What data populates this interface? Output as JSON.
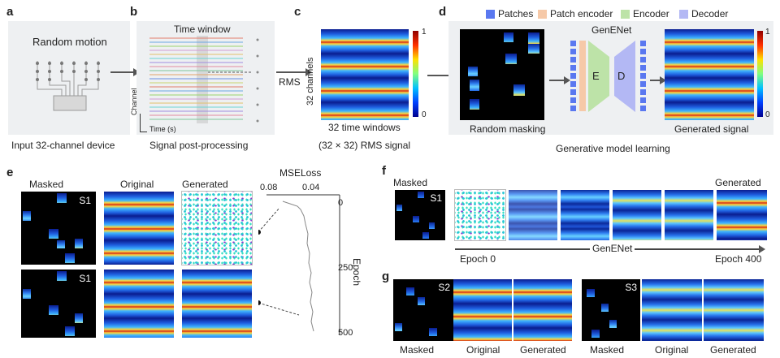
{
  "panels": {
    "a": {
      "letter": "a",
      "title": "Random motion",
      "caption": "Input 32-channel device"
    },
    "b": {
      "letter": "b",
      "title": "Time window",
      "axis_y": "Channel",
      "axis_x": "Time (s)",
      "caption": "Signal post-processing"
    },
    "c": {
      "letter": "c",
      "arrow_label": "RMS",
      "ylabel": "32 channels",
      "xlabel": "32 time windows",
      "caption": "(32 × 32) RMS signal",
      "cbar_max": "1",
      "cbar_min": "0"
    },
    "d": {
      "letter": "d",
      "legend": [
        "Patches",
        "Patch encoder",
        "Encoder",
        "Decoder"
      ],
      "legend_colors": [
        "#5a78f0",
        "#f6c9a8",
        "#bde3a8",
        "#b3b8f4"
      ],
      "model_name": "GenENet",
      "encoder_letter": "E",
      "decoder_letter": "D",
      "mask_caption": "Random masking",
      "gen_caption": "Generated signal",
      "cbar_max": "1",
      "cbar_min": "0",
      "caption": "Generative model learning"
    },
    "e": {
      "letter": "e",
      "headers": [
        "Masked",
        "Original",
        "Generated"
      ],
      "subject": "S1",
      "subject2": "S1",
      "loss_title": "MSELoss",
      "loss_ticks": [
        "0.08",
        "0.04"
      ],
      "epoch_ticks": [
        "0",
        "250",
        "500"
      ],
      "epoch_label": "Epoch"
    },
    "f": {
      "letter": "f",
      "masked_label": "Masked",
      "generated_label": "Generated",
      "subject": "S1",
      "model_name": "GenENet",
      "start_label": "Epoch 0",
      "end_label": "Epoch 400"
    },
    "g": {
      "letter": "g",
      "subject_a": "S2",
      "subject_b": "S3",
      "labels": [
        "Masked",
        "Original",
        "Generated",
        "Masked",
        "Original",
        "Generated"
      ]
    }
  }
}
